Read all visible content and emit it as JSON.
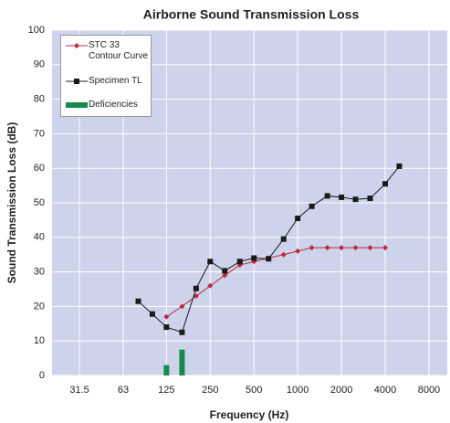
{
  "chart_data": {
    "type": "line",
    "title": "Airborne Sound Transmission Loss",
    "xlabel": "Frequency (Hz)",
    "ylabel": "Sound Transmission Loss (dB)",
    "xscale": "log",
    "xlim": [
      20.4,
      10690
    ],
    "xticks": [
      31.5,
      63,
      125,
      250,
      500,
      1000,
      2000,
      4000,
      8000
    ],
    "ylim": [
      0,
      100
    ],
    "yticks": [
      0,
      10,
      20,
      30,
      40,
      50,
      60,
      70,
      80,
      90,
      100
    ],
    "grid": true,
    "legend": "upper left",
    "plot_background": "#cdd3ea",
    "series": [
      {
        "name": "STC 33 Contour Curve",
        "color": "#c0283c",
        "marker": "diamond",
        "x": [
          125,
          160,
          200,
          250,
          315,
          400,
          500,
          630,
          800,
          1000,
          1250,
          1600,
          2000,
          2500,
          3150,
          4000
        ],
        "values": [
          17,
          20,
          23,
          26,
          29,
          32,
          33,
          34,
          35,
          36,
          37,
          37,
          37,
          37,
          37,
          37
        ]
      },
      {
        "name": "Specimen TL",
        "color": "#1a1a1a",
        "marker": "square",
        "x": [
          80,
          100,
          125,
          160,
          200,
          250,
          315,
          400,
          500,
          630,
          800,
          1000,
          1250,
          1600,
          2000,
          2500,
          3150,
          4000,
          5000
        ],
        "values": [
          21.5,
          17.8,
          14,
          12.5,
          25.2,
          33,
          30.3,
          33,
          34,
          33.8,
          39.5,
          45.5,
          49,
          52,
          51.6,
          51,
          51.3,
          55.5,
          60.6
        ]
      },
      {
        "name": "Deficiencies",
        "color": "#17894a",
        "kind": "bar",
        "x": [
          125,
          160
        ],
        "values": [
          3,
          7.5
        ]
      }
    ]
  }
}
